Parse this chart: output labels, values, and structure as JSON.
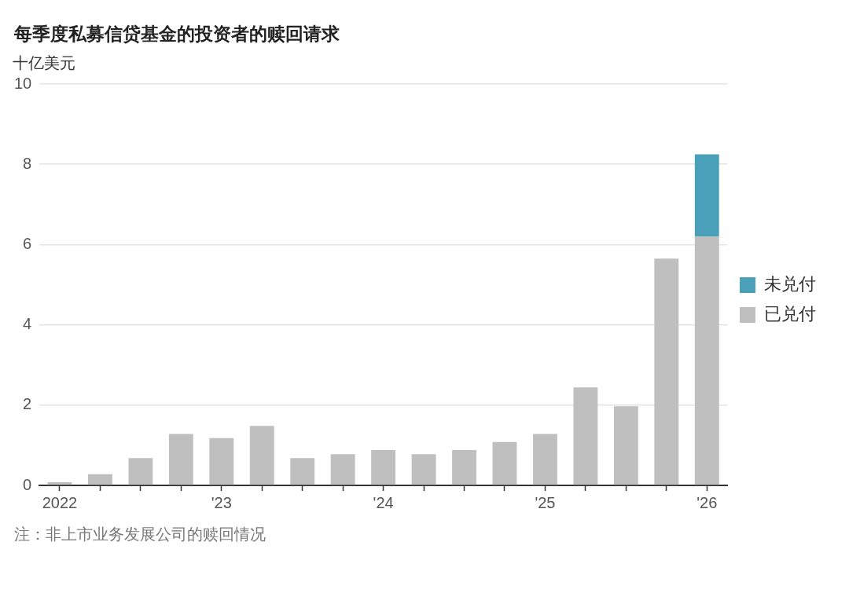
{
  "chart_data": {
    "type": "bar",
    "title": "每季度私募信贷基金的投资者的赎回请求",
    "ylabel": "十亿美元",
    "categories": [
      "2022",
      null,
      null,
      null,
      "'23",
      null,
      null,
      null,
      "'24",
      null,
      null,
      null,
      "'25",
      null,
      null,
      null,
      "'26"
    ],
    "series": [
      {
        "name": "已兑付",
        "color": "#bfbfbf",
        "values": [
          0.08,
          0.28,
          0.68,
          1.28,
          1.18,
          1.48,
          0.68,
          0.78,
          0.88,
          0.78,
          0.88,
          1.08,
          1.28,
          2.44,
          1.97,
          5.65,
          6.2
        ]
      },
      {
        "name": "未兑付",
        "color": "#4aa0b8",
        "values": [
          null,
          null,
          null,
          null,
          null,
          null,
          null,
          null,
          null,
          null,
          null,
          null,
          null,
          null,
          null,
          null,
          2.05
        ]
      }
    ],
    "stacked": true,
    "ylim": [
      0,
      10
    ],
    "yticks": [
      0,
      2,
      4,
      6,
      8,
      10
    ],
    "grid": "y",
    "legend": "right",
    "annotations": [
      "注：非上市业务发展公司的赎回情况"
    ]
  }
}
